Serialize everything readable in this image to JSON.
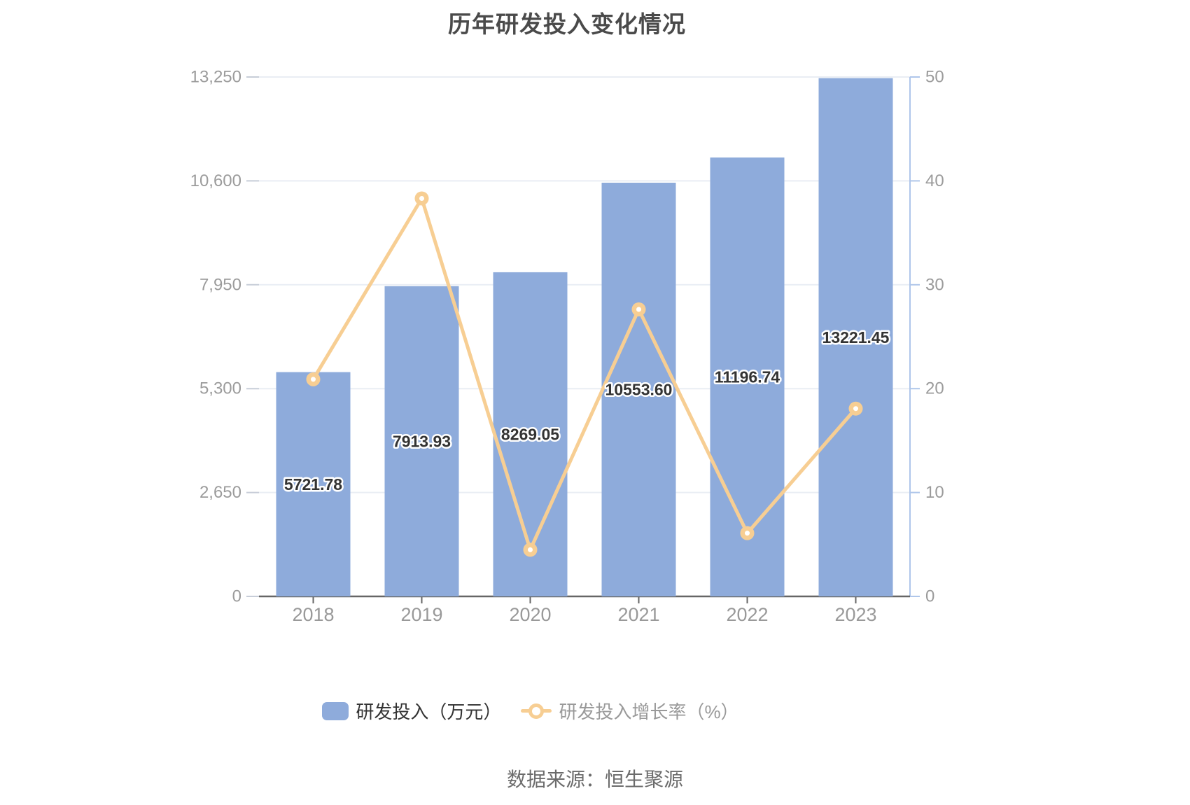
{
  "title": "历年研发投入变化情况",
  "source": "数据来源：恒生聚源",
  "legend": {
    "items": [
      {
        "label": "研发投入（万元）",
        "type": "bar"
      },
      {
        "label": "研发投入增长率（%）",
        "type": "line"
      }
    ]
  },
  "colors": {
    "bar": "#8EABDB",
    "line": "#F7CE93",
    "axis_label": "#9B9B9B",
    "x_label": "#999999",
    "grid": "#E9EDF4",
    "axis_line": "#666666",
    "right_axis_line": "#AFC6EA",
    "left_tick": "#C7CDD8",
    "value_label": "#333333",
    "title": "#4a4a4a",
    "source": "#6b6b6b",
    "legend_active": "#333333",
    "legend_muted": "#999999"
  },
  "chart_data": {
    "type": "bar+line",
    "title": "历年研发投入变化情况",
    "categories": [
      "2018",
      "2019",
      "2020",
      "2021",
      "2022",
      "2023"
    ],
    "series": [
      {
        "name": "研发投入（万元）",
        "type": "bar",
        "axis": "left",
        "values": [
          5721.78,
          7913.93,
          8269.05,
          10553.6,
          11196.74,
          13221.45
        ],
        "labels": [
          "5721.78",
          "7913.93",
          "8269.05",
          "10553.60",
          "11196.74",
          "13221.45"
        ]
      },
      {
        "name": "研发投入增长率（%）",
        "type": "line",
        "axis": "right",
        "values": [
          20.9,
          38.31,
          4.49,
          27.63,
          6.09,
          18.08
        ]
      }
    ],
    "left_axis": {
      "range": [
        0,
        13250
      ],
      "ticks": [
        0,
        2650,
        5300,
        7950,
        10600,
        13250
      ],
      "tick_labels": [
        "0",
        "2,650",
        "5,300",
        "7,950",
        "10,600",
        "13,250"
      ]
    },
    "right_axis": {
      "range": [
        0,
        50
      ],
      "ticks": [
        0,
        10,
        20,
        30,
        40,
        50
      ],
      "tick_labels": [
        "0",
        "10",
        "20",
        "30",
        "40",
        "50"
      ]
    },
    "grid": true,
    "legend_position": "bottom"
  }
}
